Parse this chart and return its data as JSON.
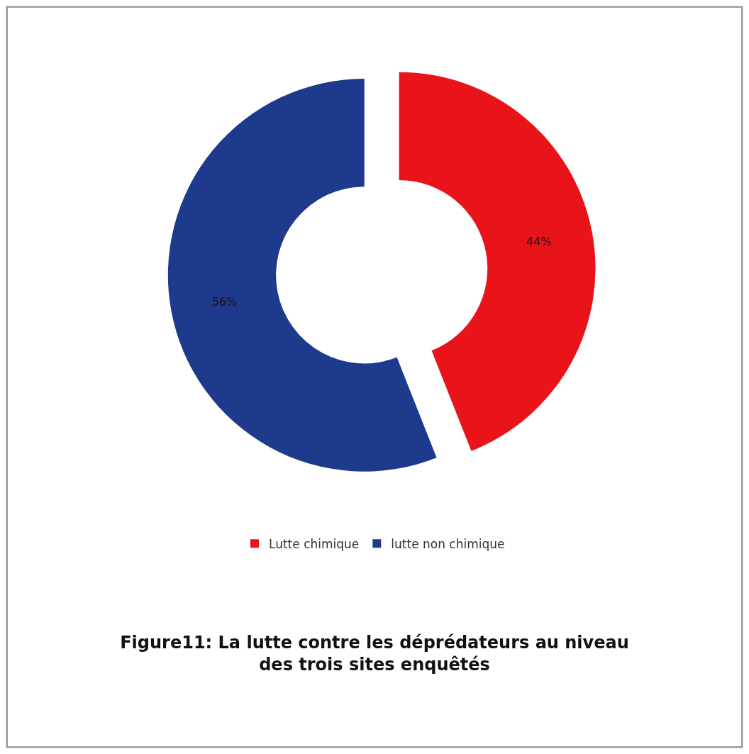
{
  "chart_data": {
    "type": "donut",
    "title": "Figure11: La lutte contre les déprédateurs au niveau des trois sites enquêtés",
    "categories": [
      "Lutte chimique",
      "lutte non chimique"
    ],
    "values": [
      44,
      56
    ],
    "value_labels": [
      "44%",
      "56%"
    ],
    "colors": [
      "#e8141a",
      "#1e3a8c"
    ],
    "legend": "bottom"
  }
}
